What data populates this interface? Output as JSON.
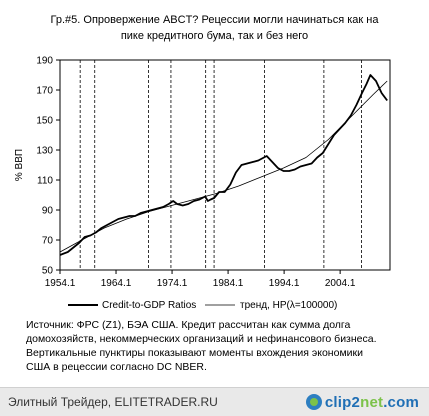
{
  "title_lines": [
    "Гр.#5. Опровержение ABCT? Рецессии могли начинаться как на",
    "пике кредитного бума, так и без него"
  ],
  "source_lines": [
    "Источник: ФРС (Z1), БЭА США. Кредит рассчитан как сумма долга",
    "домохозяйств, некоммерческих организаций и нефинансового бизнеса.",
    "Вертикальные пунктиры показывают моменты вхождения экономики",
    "США в рецессии согласно DC NBER."
  ],
  "footer": {
    "site_text": "Элитный Трейдер, ELITETRADER.RU",
    "brand_main": "clip2",
    "brand_suffix": "net",
    "brand_tld": ".com"
  },
  "chart_data": {
    "type": "line",
    "ylabel": "% ВВП",
    "xlabel": "",
    "xlim": [
      1954.1,
      2013.0
    ],
    "ylim": [
      50,
      190
    ],
    "y_ticks": [
      50,
      70,
      90,
      110,
      130,
      150,
      170,
      190
    ],
    "x_ticks": [
      1954.1,
      1964.1,
      1974.1,
      1984.1,
      1994.1,
      2004.1
    ],
    "x_tick_labels": [
      "1954.1",
      "1964.1",
      "1974.1",
      "1984.1",
      "1994.1",
      "2004.1"
    ],
    "grid": false,
    "legend_position": "bottom",
    "recessions": [
      1957.7,
      1960.3,
      1969.9,
      1973.9,
      1980.1,
      1981.6,
      1990.6,
      2001.2,
      2007.9
    ],
    "series": [
      {
        "name": "Credit-to-GDP Ratios",
        "color": "#000000",
        "style": "thick",
        "x": [
          1954.1,
          1955.5,
          1956.5,
          1957.5,
          1958.5,
          1959.5,
          1960.5,
          1961.5,
          1962.5,
          1963.5,
          1964.5,
          1965.5,
          1966.5,
          1967.5,
          1968.5,
          1969.5,
          1970.5,
          1971.5,
          1972.5,
          1973.5,
          1974.3,
          1975.0,
          1976.0,
          1977.0,
          1978.0,
          1979.0,
          1980.0,
          1980.5,
          1981.0,
          1981.6,
          1982.5,
          1983.5,
          1984.5,
          1985.5,
          1986.5,
          1987.5,
          1988.5,
          1989.5,
          1990.5,
          1991.0,
          1992.0,
          1993.0,
          1994.0,
          1995.0,
          1996.0,
          1997.0,
          1998.0,
          1999.0,
          2000.0,
          2001.0,
          2002.0,
          2003.0,
          2004.0,
          2005.0,
          2006.0,
          2007.0,
          2008.0,
          2008.8,
          2009.5,
          2010.5,
          2011.5,
          2012.5
        ],
        "y": [
          60,
          62,
          65,
          68,
          72,
          73,
          75,
          78,
          80,
          82,
          84,
          85,
          86,
          86,
          88,
          89,
          90,
          91,
          92,
          94,
          96,
          94,
          93,
          94,
          96,
          97,
          99,
          96,
          97,
          98,
          102,
          102,
          107,
          115,
          120,
          121,
          122,
          123,
          125,
          126,
          122,
          118,
          116,
          116,
          117,
          119,
          120,
          121,
          125,
          128,
          134,
          140,
          144,
          148,
          153,
          160,
          168,
          174,
          180,
          176,
          168,
          163
        ]
      },
      {
        "name": "тренд, HP(λ=100000)",
        "color": "#000000",
        "style": "thin",
        "x": [
          1954.1,
          1958.0,
          1962.0,
          1966.0,
          1970.0,
          1974.0,
          1978.0,
          1982.0,
          1986.0,
          1990.0,
          1994.0,
          1998.0,
          2002.0,
          2006.0,
          2010.0,
          2012.5
        ],
        "y": [
          62,
          70,
          78,
          84,
          89,
          93,
          97,
          101,
          106,
          112,
          118,
          125,
          137,
          152,
          167,
          176
        ]
      }
    ]
  }
}
